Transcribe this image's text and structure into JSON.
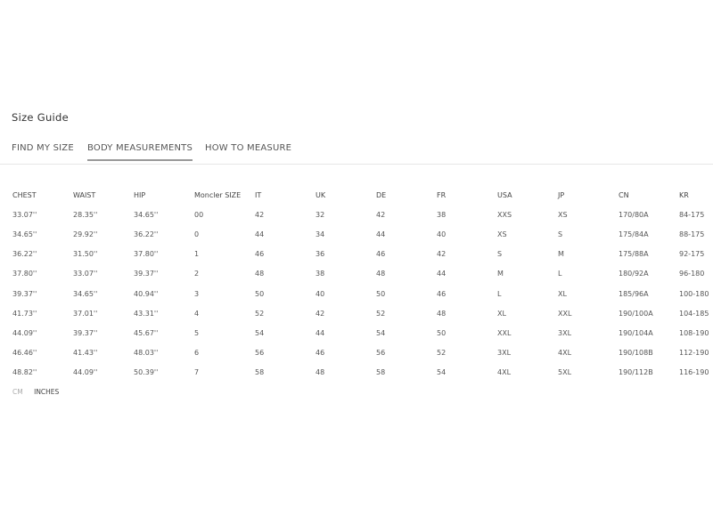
{
  "title": "Size Guide",
  "tabs": [
    {
      "label": "FIND MY SIZE",
      "active": false
    },
    {
      "label": "BODY MEASUREMENTS",
      "active": true
    },
    {
      "label": "HOW TO MEASURE",
      "active": false
    }
  ],
  "table": {
    "headers": [
      "CHEST",
      "WAIST",
      "HIP",
      "Moncler SIZE",
      "IT",
      "UK",
      "DE",
      "FR",
      "USA",
      "JP",
      "CN",
      "KR"
    ],
    "rows": [
      [
        "33.07''",
        "28.35''",
        "34.65''",
        "00",
        "42",
        "32",
        "42",
        "38",
        "XXS",
        "XS",
        "170/80A",
        "84-175"
      ],
      [
        "34.65''",
        "29.92''",
        "36.22''",
        "0",
        "44",
        "34",
        "44",
        "40",
        "XS",
        "S",
        "175/84A",
        "88-175"
      ],
      [
        "36.22''",
        "31.50''",
        "37.80''",
        "1",
        "46",
        "36",
        "46",
        "42",
        "S",
        "M",
        "175/88A",
        "92-175"
      ],
      [
        "37.80''",
        "33.07''",
        "39.37''",
        "2",
        "48",
        "38",
        "48",
        "44",
        "M",
        "L",
        "180/92A",
        "96-180"
      ],
      [
        "39.37''",
        "34.65''",
        "40.94''",
        "3",
        "50",
        "40",
        "50",
        "46",
        "L",
        "XL",
        "185/96A",
        "100-180"
      ],
      [
        "41.73''",
        "37.01''",
        "43.31''",
        "4",
        "52",
        "42",
        "52",
        "48",
        "XL",
        "XXL",
        "190/100A",
        "104-185"
      ],
      [
        "44.09''",
        "39.37''",
        "45.67''",
        "5",
        "54",
        "44",
        "54",
        "50",
        "XXL",
        "3XL",
        "190/104A",
        "108-190"
      ],
      [
        "46.46''",
        "41.43''",
        "48.03''",
        "6",
        "56",
        "46",
        "56",
        "52",
        "3XL",
        "4XL",
        "190/108B",
        "112-190"
      ],
      [
        "48.82''",
        "44.09''",
        "50.39''",
        "7",
        "58",
        "48",
        "58",
        "54",
        "4XL",
        "5XL",
        "190/112B",
        "116-190"
      ]
    ]
  },
  "units": {
    "cm": "CM",
    "inches": "INCHES",
    "selected": "INCHES"
  }
}
